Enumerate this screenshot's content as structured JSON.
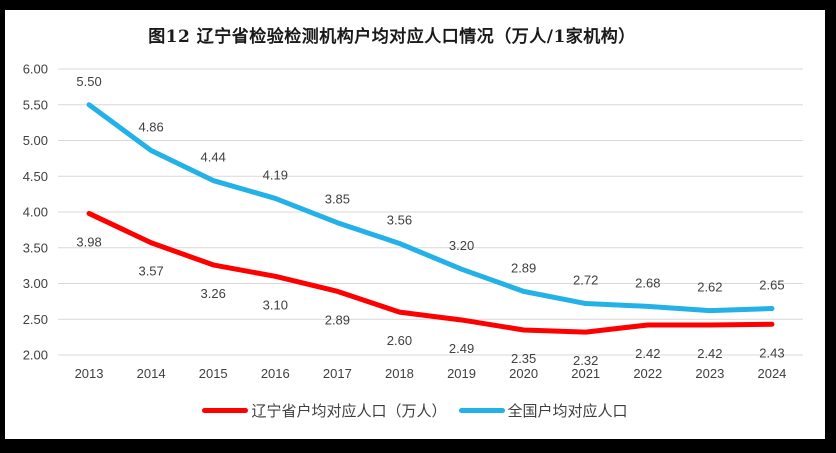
{
  "colors": {
    "frame": "#000000",
    "panel": "#FFFFFF",
    "title": "#1A1A1A",
    "text": "#404040",
    "grid": "#D9D9D9",
    "liaoning_red": "#FF0000",
    "national_blue": "#23B1E7"
  },
  "chart_data": {
    "type": "line",
    "title": "图12 辽宁省检验检测机构户均对应人口情况（万人/1家机构）",
    "categories": [
      "2013",
      "2014",
      "2015",
      "2016",
      "2017",
      "2018",
      "2019",
      "2020",
      "2021",
      "2022",
      "2023",
      "2024"
    ],
    "series": [
      {
        "name": "辽宁省户均对应人口（万人）",
        "color": "#FF0000",
        "label_position": "below",
        "values": [
          3.98,
          3.57,
          3.26,
          3.1,
          2.89,
          2.6,
          2.49,
          2.35,
          2.32,
          2.42,
          2.42,
          2.43
        ]
      },
      {
        "name": "全国户均对应人口",
        "color": "#23B1E7",
        "label_position": "above",
        "values": [
          5.5,
          4.86,
          4.44,
          4.19,
          3.85,
          3.56,
          3.2,
          2.89,
          2.72,
          2.68,
          2.62,
          2.65
        ]
      }
    ],
    "xlabel": "",
    "ylabel": "",
    "ylim": [
      2.0,
      6.0
    ],
    "y_ticks": [
      "6.00",
      "5.50",
      "5.00",
      "4.50",
      "4.00",
      "3.50",
      "3.00",
      "2.50",
      "2.00"
    ],
    "grid": true,
    "legend_position": "bottom"
  }
}
